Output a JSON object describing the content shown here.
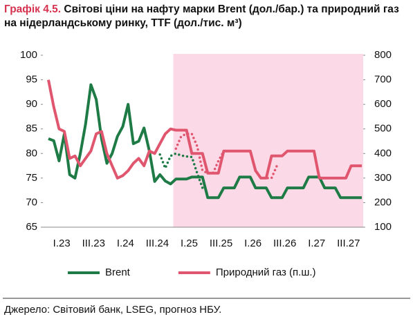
{
  "chart_data": {
    "type": "line",
    "title_label": "Графік 4.5.",
    "title": "Світові ціни на нафту марки Brent (дол./бар.) та природний газ на нідерландському ринку, TTF (дол./тис. м³)",
    "source": "Джерело: Світовий банк, LSEG, прогноз НБУ.",
    "categories": [
      null,
      null,
      "I.23",
      null,
      null,
      null,
      null,
      null,
      "III.23",
      null,
      null,
      null,
      null,
      null,
      "I.24",
      null,
      null,
      null,
      null,
      null,
      "III.24",
      null,
      null,
      null,
      null,
      null,
      "I.25",
      null,
      null,
      null,
      null,
      null,
      "III.25",
      null,
      null,
      null,
      null,
      null,
      "I.26",
      null,
      null,
      null,
      null,
      null,
      "III.26",
      null,
      null,
      null,
      null,
      null,
      "I.27",
      null,
      null,
      null,
      null,
      null,
      "III.27",
      null,
      null,
      null
    ],
    "series": [
      {
        "name": "Brent",
        "color": "#1e7b46",
        "style": "solid",
        "axis": "y",
        "values": [
          83,
          82.6,
          78.5,
          84,
          75.7,
          75,
          80,
          86,
          94,
          91,
          83,
          78,
          80,
          83.5,
          85.5,
          90,
          82,
          82.5,
          85.2,
          80.5,
          74.3,
          75.7,
          74.4,
          73.8,
          74.8,
          74.8,
          74.8,
          75.2,
          75.2,
          75.2,
          71,
          71,
          71,
          73,
          73,
          73,
          75.2,
          75.2,
          75.2,
          73,
          73,
          73,
          71,
          71,
          71,
          73,
          73,
          73,
          73,
          75.2,
          75.2,
          75.2,
          73,
          73,
          73,
          71,
          71,
          71,
          71,
          71
        ]
      },
      {
        "name": "Природний газ (п.ш.)",
        "color": "#e0566f",
        "style": "solid",
        "axis": "y2",
        "values": [
          700,
          590,
          500,
          490,
          380,
          390,
          350,
          380,
          410,
          480,
          490,
          400,
          350,
          300,
          310,
          330,
          360,
          380,
          350,
          410,
          400,
          440,
          480,
          500,
          495,
          495,
          495,
          400,
          400,
          400,
          320,
          320,
          320,
          410,
          410,
          410,
          410,
          410,
          410,
          330,
          300,
          300,
          390,
          390,
          390,
          410,
          410,
          410,
          410,
          410,
          410,
          300,
          300,
          300,
          300,
          300,
          300,
          350,
          350,
          350
        ]
      },
      {
        "color": "#1e7b46",
        "style": "dotted",
        "axis": "y",
        "values": [
          null,
          null,
          null,
          null,
          null,
          null,
          null,
          null,
          null,
          null,
          null,
          null,
          null,
          null,
          null,
          null,
          null,
          null,
          null,
          null,
          null,
          79.8,
          77,
          79.5,
          80,
          79.6,
          79.4,
          79.3,
          76,
          73,
          null,
          null,
          null,
          null,
          null,
          null,
          null,
          null,
          null,
          null,
          null,
          null,
          null,
          null,
          null,
          null,
          null,
          null,
          null,
          null,
          null,
          null,
          null,
          null,
          null,
          null,
          null,
          null,
          null,
          null
        ]
      },
      {
        "color": "#e0566f",
        "style": "dotted",
        "axis": "y2",
        "values": [
          null,
          null,
          null,
          null,
          null,
          null,
          null,
          null,
          null,
          null,
          null,
          null,
          null,
          null,
          null,
          null,
          null,
          null,
          null,
          null,
          null,
          null,
          null,
          null,
          420,
          470,
          480,
          480,
          430,
          330,
          320,
          320,
          370,
          410,
          410,
          410,
          410,
          410,
          410,
          330,
          300,
          300,
          300,
          350,
          null,
          null,
          null,
          null,
          null,
          null,
          null,
          null,
          null,
          null,
          null,
          null,
          null,
          null,
          null,
          null
        ]
      }
    ],
    "ylim": [
      65,
      100
    ],
    "yticks": [
      65,
      70,
      75,
      80,
      85,
      90,
      95,
      100
    ],
    "y2lim": [
      100,
      800
    ],
    "y2ticks": [
      100,
      200,
      300,
      400,
      500,
      600,
      700,
      800
    ],
    "shaded_region": {
      "from": 24,
      "to": 59,
      "color": "#fcd9e6"
    },
    "legend": "bottom"
  }
}
